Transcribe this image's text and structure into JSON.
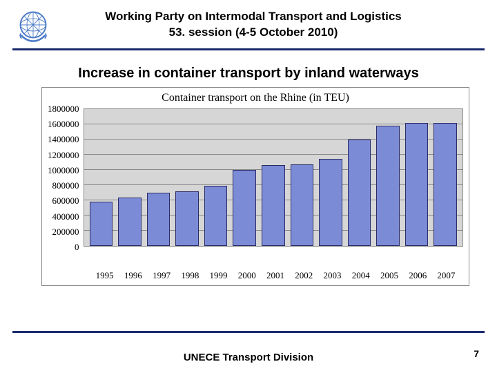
{
  "header": {
    "title_line1": "Working Party on Intermodal Transport and Logistics",
    "title_line2": "53. session (4-5 October 2010)"
  },
  "colors": {
    "rule": "#1a2a6c",
    "plot_bg": "#d6d6d6",
    "gridline": "#888888",
    "bar_fill": "#7b8bd6",
    "bar_border": "#2a2a66",
    "logo_blue": "#4a7bc7"
  },
  "subtitle": "Increase in container transport by inland waterways",
  "chart": {
    "type": "bar",
    "title": "Container transport on the Rhine (in TEU)",
    "title_fontfamily": "Times New Roman",
    "title_fontsize": 16,
    "categories": [
      "1995",
      "1996",
      "1997",
      "1998",
      "1999",
      "2000",
      "2001",
      "2002",
      "2003",
      "2004",
      "2005",
      "2006",
      "2007"
    ],
    "values": [
      580000,
      640000,
      700000,
      720000,
      790000,
      1000000,
      1060000,
      1070000,
      1150000,
      1400000,
      1580000,
      1620000,
      1620000
    ],
    "ylim": [
      0,
      1800000
    ],
    "ytick_step": 200000,
    "yticks": [
      "1800000",
      "1600000",
      "1400000",
      "1200000",
      "1000000",
      "800000",
      "600000",
      "400000",
      "200000",
      "0"
    ],
    "bar_width": 0.78,
    "axis_fontfamily": "Times New Roman",
    "axis_fontsize": 13
  },
  "footer": {
    "text": "UNECE Transport Division",
    "page": "7"
  }
}
